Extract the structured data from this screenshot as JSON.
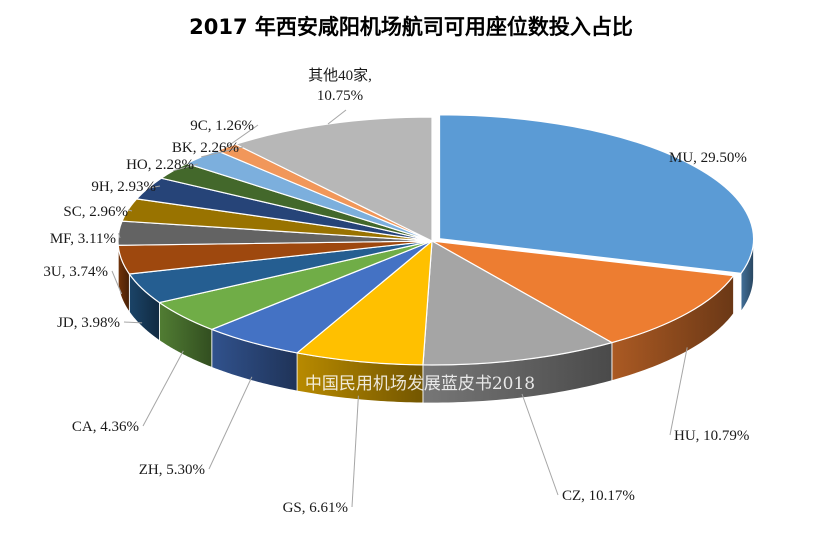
{
  "chart_data": {
    "type": "pie",
    "title": "2017 年西安咸阳机场航司可用座位数投入占比",
    "watermark": "中国民用机场发展蓝皮书2018",
    "slices": [
      {
        "label": "MU",
        "value": 29.5,
        "display": "MU, 29.50%",
        "color": "#5b9bd5"
      },
      {
        "label": "HU",
        "value": 10.79,
        "display": "HU, 10.79%",
        "color": "#ed7d31"
      },
      {
        "label": "CZ",
        "value": 10.17,
        "display": "CZ, 10.17%",
        "color": "#a5a5a5"
      },
      {
        "label": "GS",
        "value": 6.61,
        "display": "GS, 6.61%",
        "color": "#ffc000"
      },
      {
        "label": "ZH",
        "value": 5.3,
        "display": "ZH, 5.30%",
        "color": "#4472c4"
      },
      {
        "label": "CA",
        "value": 4.36,
        "display": "CA, 4.36%",
        "color": "#70ad47"
      },
      {
        "label": "JD",
        "value": 3.98,
        "display": "JD, 3.98%",
        "color": "#255e91"
      },
      {
        "label": "3U",
        "value": 3.74,
        "display": "3U, 3.74%",
        "color": "#9e480e"
      },
      {
        "label": "MF",
        "value": 3.11,
        "display": "MF, 3.11%",
        "color": "#636363"
      },
      {
        "label": "SC",
        "value": 2.96,
        "display": "SC, 2.96%",
        "color": "#997300"
      },
      {
        "label": "9H",
        "value": 2.93,
        "display": "9H, 2.93%",
        "color": "#264478"
      },
      {
        "label": "HO",
        "value": 2.28,
        "display": "HO, 2.28%",
        "color": "#43682b"
      },
      {
        "label": "BK",
        "value": 2.26,
        "display": "BK, 2.26%",
        "color": "#7cafdd"
      },
      {
        "label": "9C",
        "value": 1.26,
        "display": "9C, 1.26%",
        "color": "#f1975a"
      },
      {
        "label": "其他40家",
        "value": 10.75,
        "display_lines": [
          "其他40家,",
          "10.75%"
        ],
        "color": "#b7b7b7"
      }
    ]
  }
}
